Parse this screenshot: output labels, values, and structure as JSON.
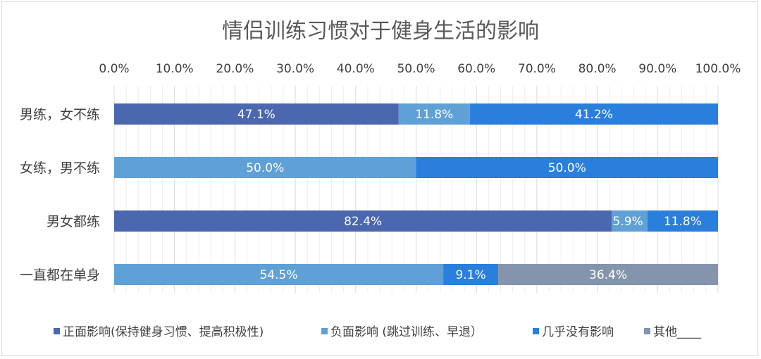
{
  "chart_data": {
    "type": "bar",
    "orientation": "horizontal",
    "stacked": "100%",
    "title": "情侣训练习惯对于健身生活的影响",
    "categories": [
      "男练，女不练",
      "女练，男不练",
      "男女都练",
      "一直都在单身"
    ],
    "series": [
      {
        "name": "正面影响(保持健身习惯、提高积极性)",
        "color": "#4a67b0",
        "values": [
          47.1,
          0,
          82.4,
          0
        ],
        "labels": [
          "47.1%",
          "",
          "82.4%",
          ""
        ]
      },
      {
        "name": "负面影响 (跳过训练、早退）",
        "color": "#5fa0d6",
        "values": [
          11.8,
          50.0,
          5.9,
          54.5
        ],
        "labels": [
          "11.8%",
          "50.0%",
          "5.9%",
          "54.5%"
        ]
      },
      {
        "name": "几乎没有影响",
        "color": "#2b7fdc",
        "values": [
          41.2,
          50.0,
          11.8,
          9.1
        ],
        "labels": [
          "41.2%",
          "50.0%",
          "11.8%",
          "9.1%"
        ]
      },
      {
        "name": "其他____",
        "color": "#8494ac",
        "values": [
          0,
          0,
          0,
          36.4
        ],
        "labels": [
          "",
          "",
          "",
          "36.4%"
        ]
      }
    ],
    "xlim": [
      0,
      100
    ],
    "xticks": [
      "0.0%",
      "10.0%",
      "20.0%",
      "30.0%",
      "40.0%",
      "50.0%",
      "60.0%",
      "70.0%",
      "80.0%",
      "90.0%",
      "100.0%"
    ],
    "axis_position": "top",
    "grid": true,
    "legend_position": "bottom"
  }
}
